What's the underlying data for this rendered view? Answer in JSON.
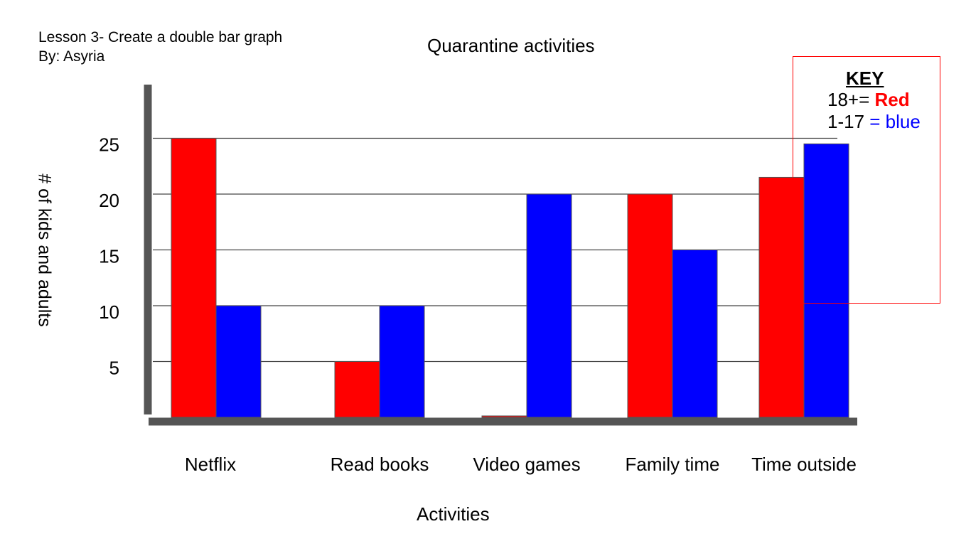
{
  "header": {
    "lesson": "Lesson 3- Create a double bar graph",
    "byline": "By: Asyria"
  },
  "key": {
    "title": "KEY",
    "line1_prefix": "18+= ",
    "line1_color_word": "Red",
    "line2_prefix": "1-17 ",
    "line2_color_word": "= blue"
  },
  "colors": {
    "red_series": "#ff0000",
    "blue_series": "#0000ff",
    "axis": "#555555",
    "grid": "#444444",
    "key_border": "#ff0000"
  },
  "chart_data": {
    "type": "bar",
    "title": "Quarantine activities",
    "xlabel": "Activities",
    "ylabel": "# of kids and adults",
    "categories": [
      "Netflix",
      "Read books",
      "Video games",
      "Family time",
      "Time outside"
    ],
    "series": [
      {
        "name": "18+",
        "color": "#ff0000",
        "values": [
          25,
          5,
          0,
          20,
          21.5
        ]
      },
      {
        "name": "1-17",
        "color": "#0000ff",
        "values": [
          10,
          10,
          20,
          15,
          24.5
        ]
      }
    ],
    "yticks": [
      5,
      10,
      15,
      20,
      25
    ],
    "ylim": [
      0,
      28
    ],
    "grid": true
  }
}
